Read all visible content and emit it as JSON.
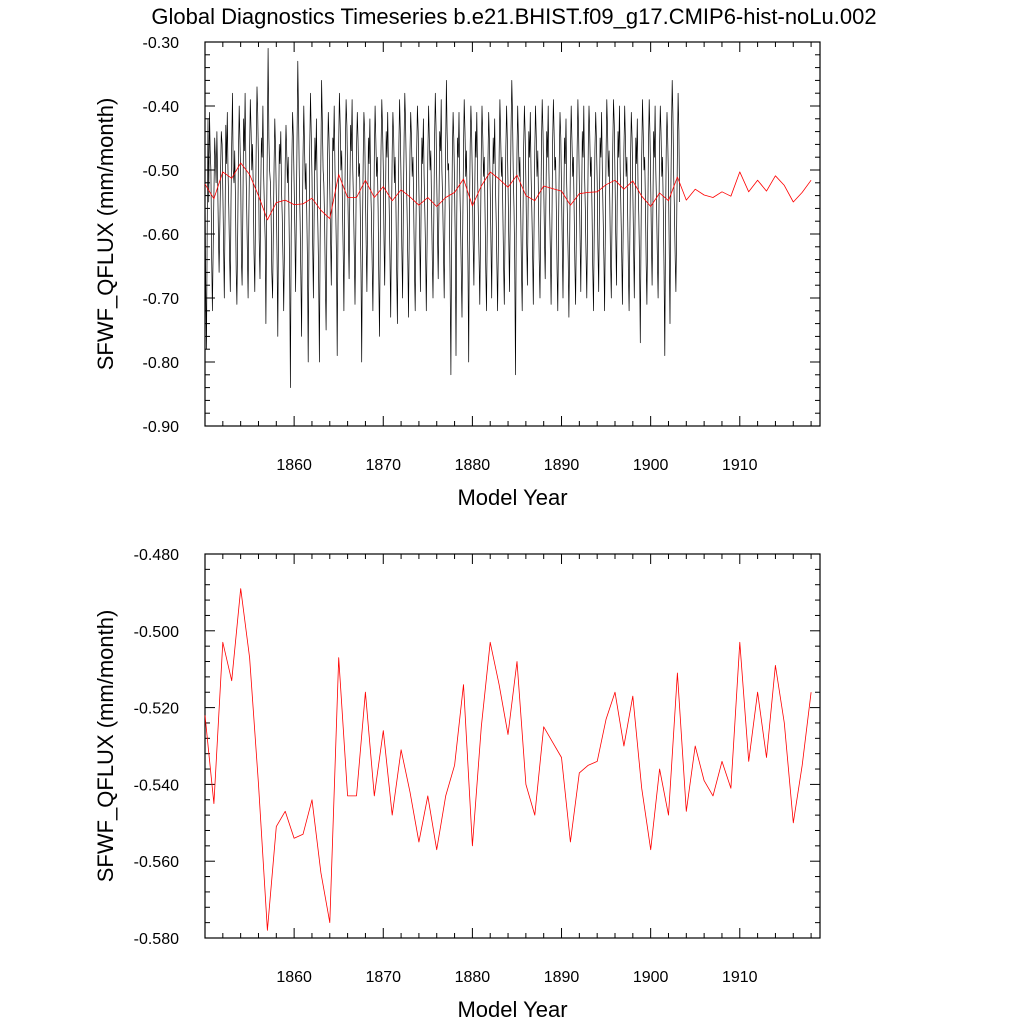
{
  "title": "Global Diagnostics Timeseries b.e21.BHIST.f09_g17.CMIP6-hist-noLu.002",
  "colors": {
    "monthly": "#000000",
    "annual": "#ff0000",
    "axes": "#000000"
  },
  "chart_data": [
    {
      "type": "line",
      "xlabel": "Model Year",
      "ylabel": "SFWF_QFLUX (mm/month)",
      "xlim": [
        1850,
        1919
      ],
      "ylim": [
        -0.9,
        -0.3
      ],
      "xticks": [
        1860,
        1870,
        1880,
        1890,
        1900,
        1910
      ],
      "xtick_labels": [
        "1860",
        "1870",
        "1880",
        "1890",
        "1900",
        "1910"
      ],
      "yticks": [
        -0.3,
        -0.4,
        -0.5,
        -0.6,
        -0.7,
        -0.8,
        -0.9
      ],
      "ytick_labels": [
        "-0.30",
        "-0.40",
        "-0.50",
        "-0.60",
        "-0.70",
        "-0.80",
        "-0.90"
      ],
      "grid": false,
      "series": [
        {
          "key": "monthly",
          "color": "#000000",
          "x_start": 1850.0,
          "x_step": 0.083333,
          "values": [
            -0.52,
            -0.68,
            -0.78,
            -0.59,
            -0.42,
            -0.55,
            -0.41,
            -0.47,
            -0.5,
            -0.64,
            -0.72,
            -0.62,
            -0.54,
            -0.45,
            -0.48,
            -0.52,
            -0.44,
            -0.51,
            -0.6,
            -0.66,
            -0.58,
            -0.5,
            -0.44,
            -0.46,
            -0.53,
            -0.62,
            -0.7,
            -0.57,
            -0.43,
            -0.49,
            -0.41,
            -0.5,
            -0.56,
            -0.63,
            -0.69,
            -0.55,
            -0.46,
            -0.38,
            -0.5,
            -0.52,
            -0.47,
            -0.55,
            -0.66,
            -0.71,
            -0.6,
            -0.48,
            -0.4,
            -0.45,
            -0.51,
            -0.64,
            -0.68,
            -0.56,
            -0.42,
            -0.47,
            -0.38,
            -0.49,
            -0.55,
            -0.62,
            -0.7,
            -0.58,
            -0.47,
            -0.39,
            -0.44,
            -0.5,
            -0.46,
            -0.53,
            -0.63,
            -0.69,
            -0.57,
            -0.46,
            -0.37,
            -0.41,
            -0.49,
            -0.61,
            -0.67,
            -0.54,
            -0.45,
            -0.48,
            -0.4,
            -0.51,
            -0.56,
            -0.61,
            -0.74,
            -0.59,
            -0.44,
            -0.31,
            -0.45,
            -0.5,
            -0.52,
            -0.57,
            -0.66,
            -0.7,
            -0.6,
            -0.49,
            -0.42,
            -0.47,
            -0.54,
            -0.63,
            -0.76,
            -0.59,
            -0.46,
            -0.49,
            -0.44,
            -0.53,
            -0.57,
            -0.64,
            -0.72,
            -0.62,
            -0.49,
            -0.43,
            -0.47,
            -0.52,
            -0.48,
            -0.56,
            -0.67,
            -0.84,
            -0.6,
            -0.48,
            -0.41,
            -0.45,
            -0.52,
            -0.6,
            -0.69,
            -0.56,
            -0.44,
            -0.33,
            -0.42,
            -0.51,
            -0.58,
            -0.66,
            -0.76,
            -0.6,
            -0.48,
            -0.4,
            -0.46,
            -0.53,
            -0.49,
            -0.57,
            -0.65,
            -0.8,
            -0.61,
            -0.47,
            -0.38,
            -0.44,
            -0.51,
            -0.62,
            -0.7,
            -0.56,
            -0.45,
            -0.5,
            -0.42,
            -0.53,
            -0.59,
            -0.66,
            -0.8,
            -0.62,
            -0.48,
            -0.36,
            -0.43,
            -0.5,
            -0.52,
            -0.58,
            -0.67,
            -0.75,
            -0.61,
            -0.48,
            -0.41,
            -0.45,
            -0.53,
            -0.6,
            -0.68,
            -0.56,
            -0.45,
            -0.47,
            -0.4,
            -0.5,
            -0.56,
            -0.64,
            -0.79,
            -0.59,
            -0.46,
            -0.38,
            -0.43,
            -0.5,
            -0.47,
            -0.55,
            -0.63,
            -0.72,
            -0.58,
            -0.46,
            -0.39,
            -0.43,
            -0.51,
            -0.6,
            -0.67,
            -0.54,
            -0.43,
            -0.47,
            -0.39,
            -0.5,
            -0.56,
            -0.63,
            -0.71,
            -0.6,
            -0.47,
            -0.41,
            -0.45,
            -0.51,
            -0.49,
            -0.56,
            -0.66,
            -0.8,
            -0.6,
            -0.48,
            -0.41,
            -0.44,
            -0.53,
            -0.62,
            -0.69,
            -0.56,
            -0.45,
            -0.49,
            -0.42,
            -0.52,
            -0.57,
            -0.64,
            -0.72,
            -0.61,
            -0.48,
            -0.4,
            -0.45,
            -0.51,
            -0.48,
            -0.56,
            -0.67,
            -0.76,
            -0.6,
            -0.47,
            -0.39,
            -0.43,
            -0.5,
            -0.61,
            -0.68,
            -0.55,
            -0.44,
            -0.48,
            -0.41,
            -0.5,
            -0.56,
            -0.63,
            -0.73,
            -0.6,
            -0.47,
            -0.41,
            -0.45,
            -0.52,
            -0.48,
            -0.55,
            -0.65,
            -0.74,
            -0.59,
            -0.46,
            -0.39,
            -0.44,
            -0.52,
            -0.62,
            -0.7,
            -0.57,
            -0.45,
            -0.38,
            -0.42,
            -0.5,
            -0.56,
            -0.64,
            -0.73,
            -0.59,
            -0.47,
            -0.41,
            -0.45,
            -0.51,
            -0.48,
            -0.56,
            -0.66,
            -0.72,
            -0.6,
            -0.47,
            -0.4,
            -0.44,
            -0.53,
            -0.61,
            -0.69,
            -0.56,
            -0.45,
            -0.49,
            -0.42,
            -0.51,
            -0.57,
            -0.63,
            -0.72,
            -0.61,
            -0.48,
            -0.4,
            -0.45,
            -0.5,
            -0.47,
            -0.55,
            -0.64,
            -0.7,
            -0.58,
            -0.46,
            -0.38,
            -0.43,
            -0.51,
            -0.6,
            -0.67,
            -0.55,
            -0.44,
            -0.47,
            -0.39,
            -0.5,
            -0.55,
            -0.62,
            -0.7,
            -0.58,
            -0.46,
            -0.36,
            -0.44,
            -0.5,
            -0.49,
            -0.57,
            -0.67,
            -0.82,
            -0.61,
            -0.48,
            -0.41,
            -0.45,
            -0.53,
            -0.62,
            -0.79,
            -0.57,
            -0.45,
            -0.48,
            -0.41,
            -0.52,
            -0.58,
            -0.65,
            -0.73,
            -0.6,
            -0.47,
            -0.39,
            -0.44,
            -0.51,
            -0.47,
            -0.55,
            -0.64,
            -0.8,
            -0.58,
            -0.46,
            -0.4,
            -0.44,
            -0.52,
            -0.61,
            -0.68,
            -0.56,
            -0.44,
            -0.48,
            -0.41,
            -0.51,
            -0.57,
            -0.64,
            -0.71,
            -0.59,
            -0.47,
            -0.4,
            -0.45,
            -0.51,
            -0.48,
            -0.56,
            -0.66,
            -0.72,
            -0.6,
            -0.48,
            -0.41,
            -0.46,
            -0.53,
            -0.62,
            -0.7,
            -0.57,
            -0.45,
            -0.49,
            -0.42,
            -0.52,
            -0.58,
            -0.65,
            -0.72,
            -0.61,
            -0.48,
            -0.39,
            -0.44,
            -0.51,
            -0.48,
            -0.56,
            -0.65,
            -0.71,
            -0.59,
            -0.47,
            -0.4,
            -0.45,
            -0.52,
            -0.61,
            -0.69,
            -0.56,
            -0.44,
            -0.36,
            -0.41,
            -0.5,
            -0.56,
            -0.64,
            -0.82,
            -0.6,
            -0.47,
            -0.4,
            -0.45,
            -0.51,
            -0.48,
            -0.56,
            -0.65,
            -0.72,
            -0.59,
            -0.47,
            -0.4,
            -0.44,
            -0.52,
            -0.61,
            -0.68,
            -0.56,
            -0.44,
            -0.48,
            -0.41,
            -0.51,
            -0.56,
            -0.63,
            -0.71,
            -0.6,
            -0.47,
            -0.4,
            -0.45,
            -0.51,
            -0.47,
            -0.55,
            -0.64,
            -0.7,
            -0.58,
            -0.46,
            -0.39,
            -0.44,
            -0.52,
            -0.6,
            -0.67,
            -0.55,
            -0.44,
            -0.48,
            -0.4,
            -0.5,
            -0.56,
            -0.63,
            -0.71,
            -0.59,
            -0.46,
            -0.39,
            -0.44,
            -0.5,
            -0.48,
            -0.56,
            -0.66,
            -0.72,
            -0.6,
            -0.48,
            -0.41,
            -0.45,
            -0.53,
            -0.62,
            -0.7,
            -0.57,
            -0.45,
            -0.49,
            -0.42,
            -0.52,
            -0.58,
            -0.64,
            -0.73,
            -0.61,
            -0.48,
            -0.4,
            -0.45,
            -0.51,
            -0.48,
            -0.56,
            -0.65,
            -0.71,
            -0.59,
            -0.47,
            -0.39,
            -0.44,
            -0.52,
            -0.61,
            -0.69,
            -0.56,
            -0.44,
            -0.48,
            -0.4,
            -0.5,
            -0.56,
            -0.63,
            -0.7,
            -0.59,
            -0.46,
            -0.4,
            -0.44,
            -0.51,
            -0.48,
            -0.56,
            -0.65,
            -0.72,
            -0.6,
            -0.47,
            -0.41,
            -0.45,
            -0.52,
            -0.62,
            -0.69,
            -0.56,
            -0.45,
            -0.48,
            -0.41,
            -0.51,
            -0.57,
            -0.64,
            -0.72,
            -0.6,
            -0.47,
            -0.39,
            -0.44,
            -0.51,
            -0.47,
            -0.55,
            -0.64,
            -0.7,
            -0.58,
            -0.46,
            -0.39,
            -0.43,
            -0.51,
            -0.6,
            -0.68,
            -0.55,
            -0.44,
            -0.48,
            -0.4,
            -0.5,
            -0.56,
            -0.63,
            -0.71,
            -0.59,
            -0.47,
            -0.4,
            -0.45,
            -0.51,
            -0.48,
            -0.56,
            -0.66,
            -0.72,
            -0.6,
            -0.48,
            -0.41,
            -0.45,
            -0.53,
            -0.62,
            -0.7,
            -0.57,
            -0.45,
            -0.49,
            -0.42,
            -0.52,
            -0.57,
            -0.64,
            -0.77,
            -0.61,
            -0.48,
            -0.39,
            -0.44,
            -0.5,
            -0.48,
            -0.56,
            -0.65,
            -0.71,
            -0.59,
            -0.47,
            -0.39,
            -0.44,
            -0.52,
            -0.61,
            -0.68,
            -0.56,
            -0.44,
            -0.48,
            -0.4,
            -0.5,
            -0.56,
            -0.63,
            -0.7,
            -0.59,
            -0.46,
            -0.4,
            -0.44,
            -0.51,
            -0.48,
            -0.56,
            -0.65,
            -0.79,
            -0.6,
            -0.47,
            -0.41,
            -0.45,
            -0.52,
            -0.62,
            -0.74,
            -0.56,
            -0.45,
            -0.36,
            -0.41,
            -0.51,
            -0.56,
            -0.64,
            -0.69,
            -0.6,
            -0.47,
            -0.38,
            -0.44,
            -0.55
          ]
        },
        {
          "key": "annual",
          "color": "#ff0000",
          "x_start": 1850.0,
          "x_step": 1.0,
          "values": [
            -0.522,
            -0.545,
            -0.503,
            -0.513,
            -0.489,
            -0.507,
            -0.54,
            -0.578,
            -0.551,
            -0.547,
            -0.554,
            -0.553,
            -0.544,
            -0.563,
            -0.576,
            -0.507,
            -0.543,
            -0.543,
            -0.516,
            -0.543,
            -0.526,
            -0.548,
            -0.531,
            -0.542,
            -0.555,
            -0.543,
            -0.557,
            -0.543,
            -0.535,
            -0.514,
            -0.556,
            -0.525,
            -0.503,
            -0.514,
            -0.527,
            -0.508,
            -0.54,
            -0.548,
            -0.525,
            -0.529,
            -0.533,
            -0.555,
            -0.537,
            -0.535,
            -0.534,
            -0.523,
            -0.516,
            -0.53,
            -0.517,
            -0.541,
            -0.557,
            -0.536,
            -0.548,
            -0.511,
            -0.547,
            -0.53,
            -0.539,
            -0.543,
            -0.534,
            -0.541,
            -0.503,
            -0.534,
            -0.516,
            -0.533,
            -0.509,
            -0.524,
            -0.55,
            -0.535,
            -0.516
          ]
        }
      ]
    },
    {
      "type": "line",
      "xlabel": "Model Year",
      "ylabel": "SFWF_QFLUX (mm/month)",
      "xlim": [
        1850,
        1919
      ],
      "ylim": [
        -0.58,
        -0.48
      ],
      "xticks": [
        1860,
        1870,
        1880,
        1890,
        1900,
        1910
      ],
      "xtick_labels": [
        "1860",
        "1870",
        "1880",
        "1890",
        "1900",
        "1910"
      ],
      "yticks": [
        -0.48,
        -0.5,
        -0.52,
        -0.54,
        -0.56,
        -0.58
      ],
      "ytick_labels": [
        "-0.480",
        "-0.500",
        "-0.520",
        "-0.540",
        "-0.560",
        "-0.580"
      ],
      "grid": false,
      "series": [
        {
          "key": "annual",
          "color": "#ff0000",
          "x_start": 1850.0,
          "x_step": 1.0,
          "values": [
            -0.522,
            -0.545,
            -0.503,
            -0.513,
            -0.489,
            -0.507,
            -0.54,
            -0.578,
            -0.551,
            -0.547,
            -0.554,
            -0.553,
            -0.544,
            -0.563,
            -0.576,
            -0.507,
            -0.543,
            -0.543,
            -0.516,
            -0.543,
            -0.526,
            -0.548,
            -0.531,
            -0.542,
            -0.555,
            -0.543,
            -0.557,
            -0.543,
            -0.535,
            -0.514,
            -0.556,
            -0.525,
            -0.503,
            -0.514,
            -0.527,
            -0.508,
            -0.54,
            -0.548,
            -0.525,
            -0.529,
            -0.533,
            -0.555,
            -0.537,
            -0.535,
            -0.534,
            -0.523,
            -0.516,
            -0.53,
            -0.517,
            -0.541,
            -0.557,
            -0.536,
            -0.548,
            -0.511,
            -0.547,
            -0.53,
            -0.539,
            -0.543,
            -0.534,
            -0.541,
            -0.503,
            -0.534,
            -0.516,
            -0.533,
            -0.509,
            -0.524,
            -0.55,
            -0.535,
            -0.516
          ]
        }
      ]
    }
  ]
}
